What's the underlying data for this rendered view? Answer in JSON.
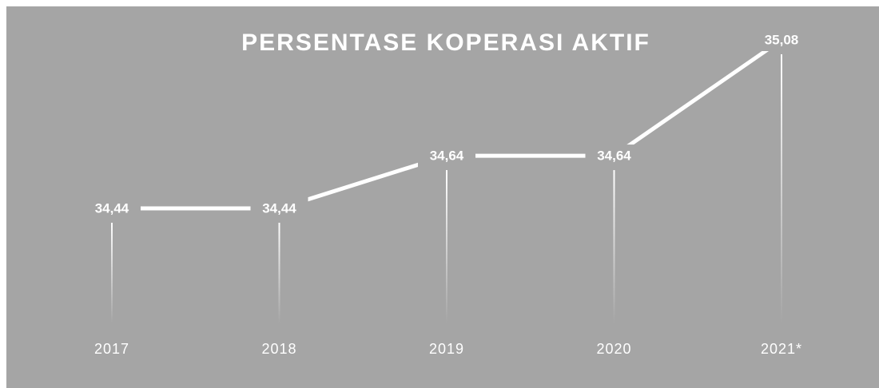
{
  "chart_data": {
    "type": "line",
    "title": "PERSENTASE KOPERASI AKTIF",
    "categories": [
      "2017",
      "2018",
      "2019",
      "2020",
      "2021*"
    ],
    "values": [
      34.44,
      34.44,
      34.64,
      34.64,
      35.08
    ],
    "value_labels": [
      "34,44",
      "34,44",
      "34,64",
      "34,64",
      "35,08"
    ],
    "color": "#ffffff"
  }
}
